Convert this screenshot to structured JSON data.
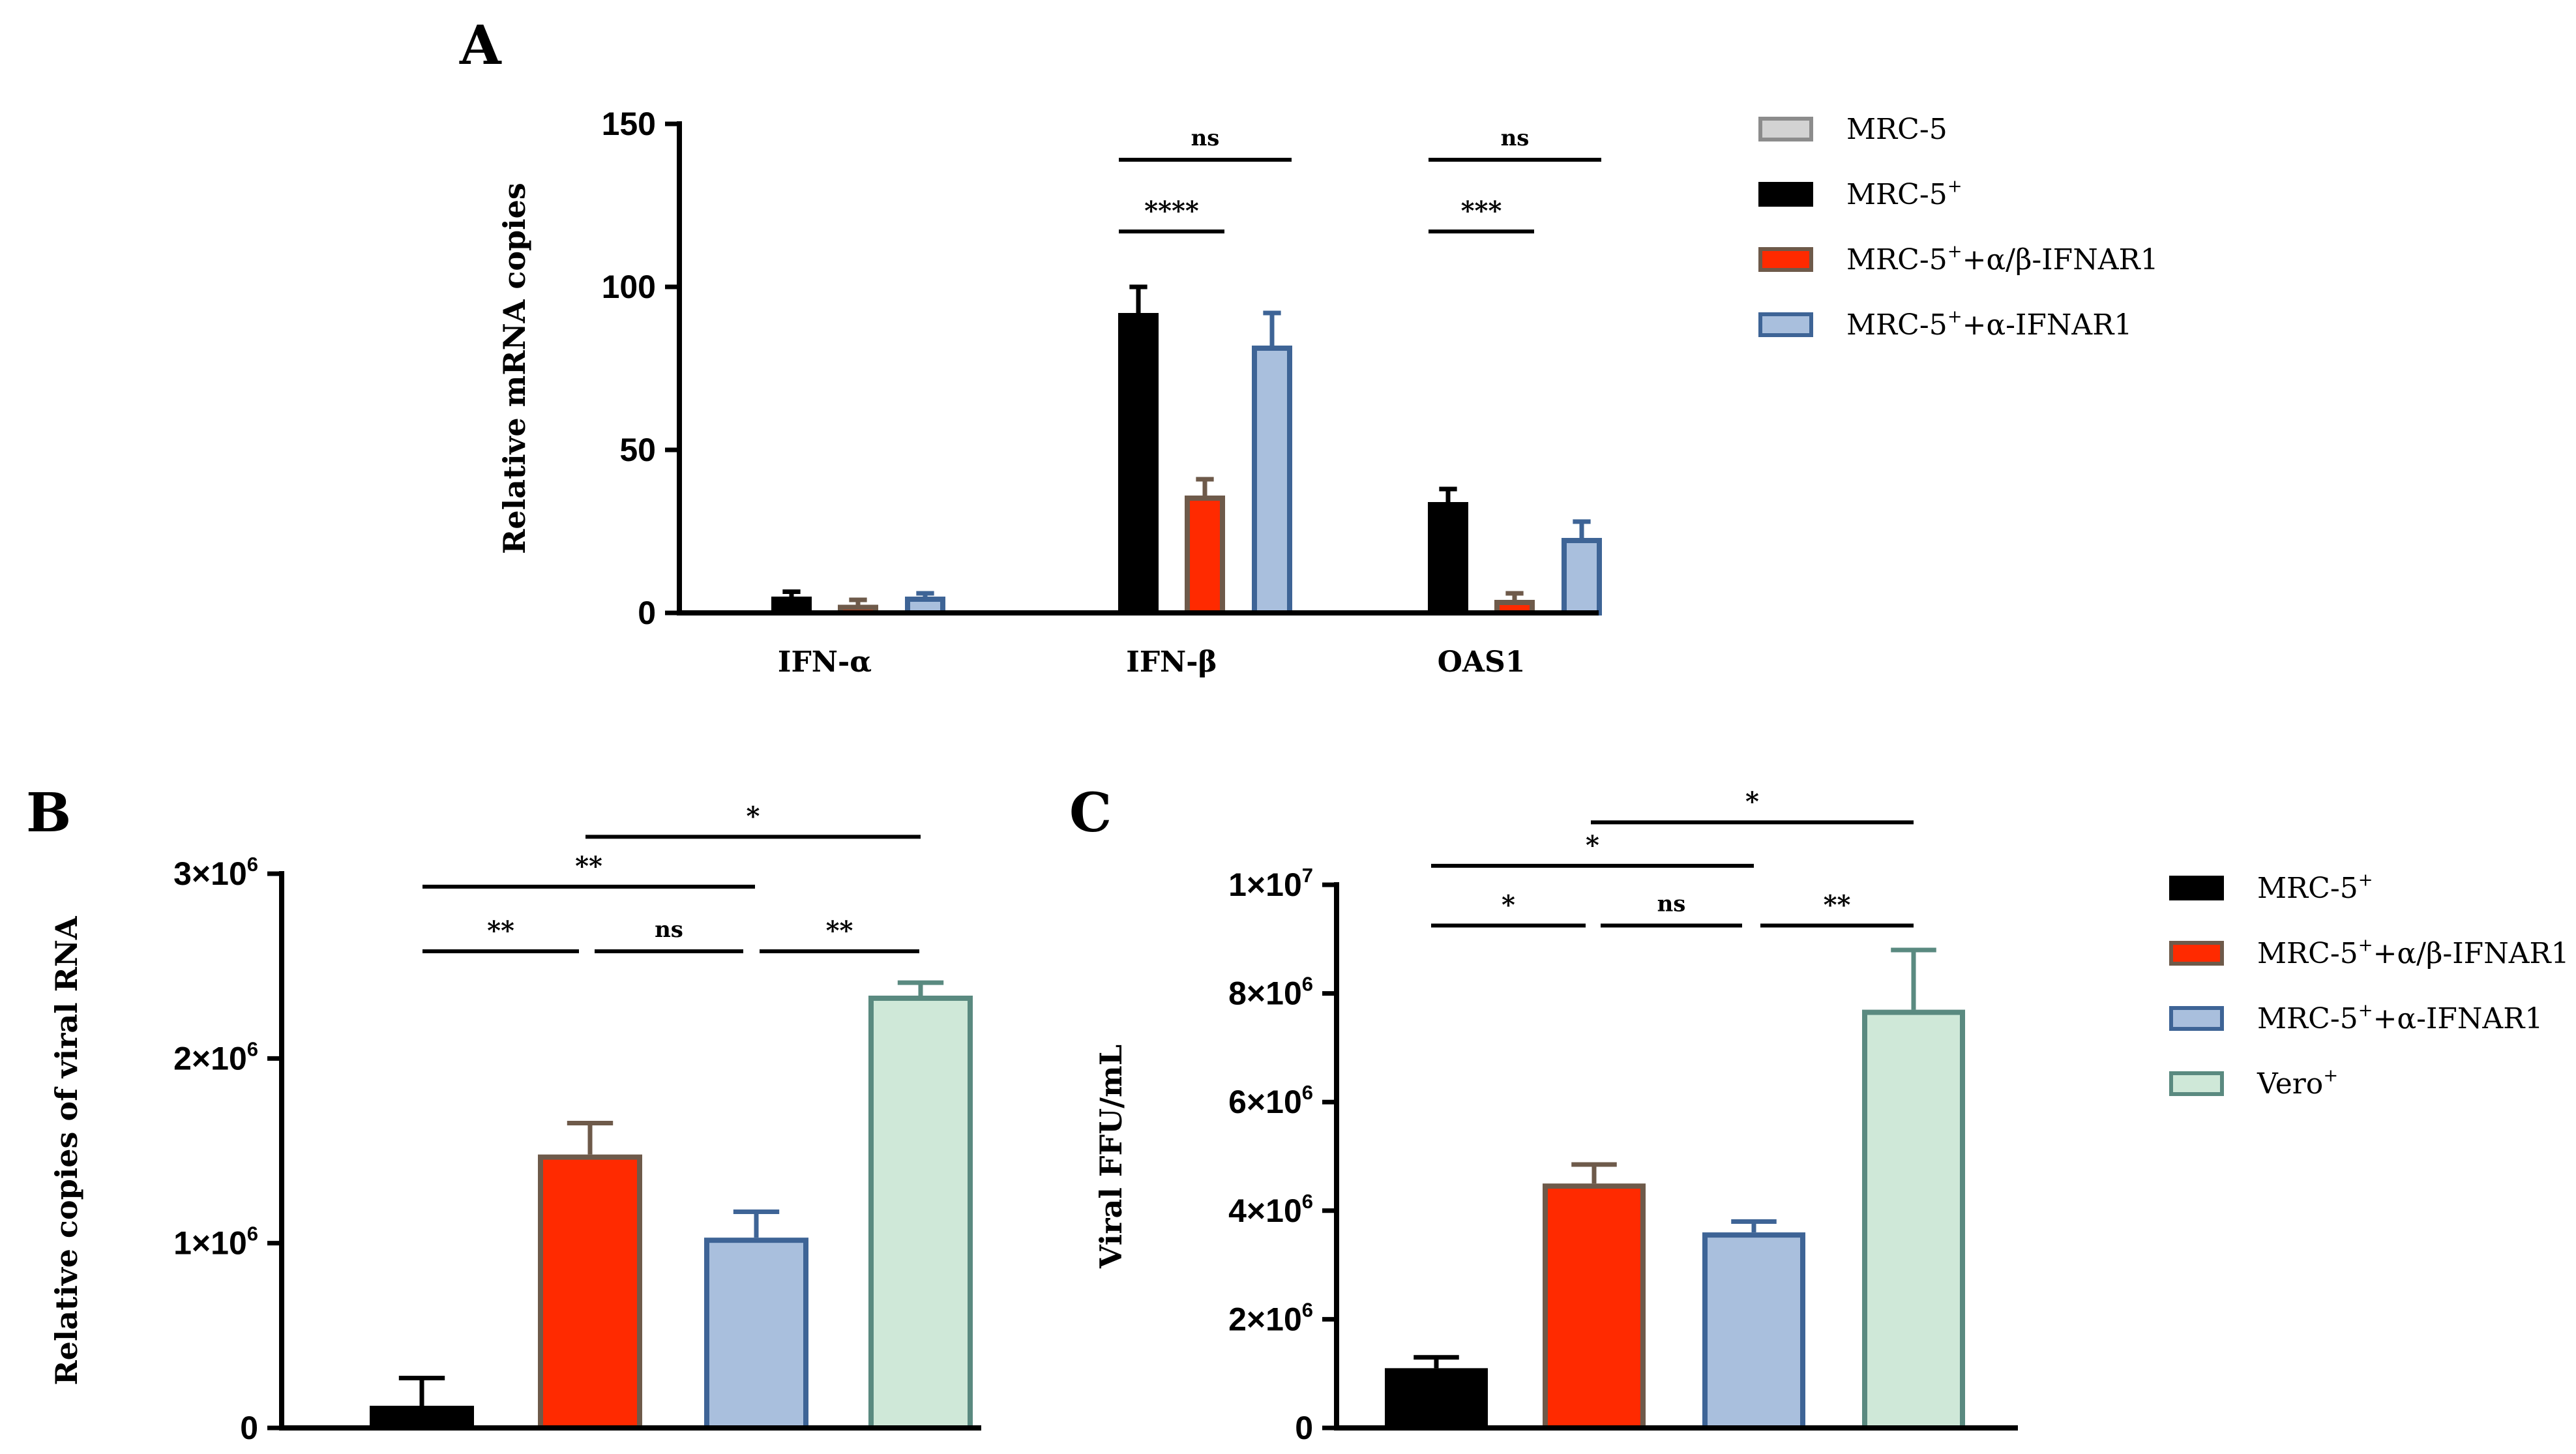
{
  "chart_data": [
    {
      "id": "A",
      "panel_label": "A",
      "type": "bar",
      "ylabel": "Relative mRNA copies",
      "ylim": [
        0,
        150
      ],
      "yticks": [
        0,
        50,
        100,
        150
      ],
      "ytick_labels": [
        "0",
        "50",
        "100",
        "150"
      ],
      "categories": [
        "IFN-α",
        "IFN-β",
        "OAS1"
      ],
      "series": [
        {
          "name": "MRC-5",
          "values": [
            0,
            0,
            0
          ],
          "errors": [
            0,
            0,
            0
          ],
          "fill": "#d3d3d3",
          "stroke": "#8c8c8c"
        },
        {
          "name": "MRC-5+",
          "values": [
            5,
            92,
            34
          ],
          "errors": [
            1.5,
            8,
            4
          ],
          "fill": "#000000",
          "stroke": "#000000"
        },
        {
          "name": "MRC-5+ +α/β-IFNAR1",
          "values": [
            2.5,
            36,
            4
          ],
          "errors": [
            1.5,
            5,
            2
          ],
          "fill": "#ff2a00",
          "stroke": "#6e5a4a"
        },
        {
          "name": "MRC-5+ +α-IFNAR1",
          "values": [
            5,
            82,
            23
          ],
          "errors": [
            1,
            10,
            5
          ],
          "fill": "#a9bfdd",
          "stroke": "#3e6496"
        }
      ],
      "legend": [
        {
          "text": "MRC-5",
          "sup": "",
          "suffix": ""
        },
        {
          "text": "MRC-5",
          "sup": "+",
          "suffix": ""
        },
        {
          "text": "MRC-5",
          "sup": "+",
          "suffix": "+α/β-IFNAR1"
        },
        {
          "text": "MRC-5",
          "sup": "+",
          "suffix": "+α-IFNAR1"
        }
      ],
      "significance": [
        {
          "label": "ns",
          "category": 1,
          "from": 1,
          "to": 3,
          "y": 139
        },
        {
          "label": "****",
          "category": 1,
          "from": 1,
          "to": 2,
          "y": 117
        },
        {
          "label": "ns",
          "category": 2,
          "from": 1,
          "to": 3,
          "y": 139
        },
        {
          "label": "***",
          "category": 2,
          "from": 1,
          "to": 2,
          "y": 117
        }
      ]
    },
    {
      "id": "B",
      "panel_label": "B",
      "type": "bar",
      "ylabel": "Relative copies of viral RNA",
      "ylim": [
        0,
        3000000
      ],
      "yticks": [
        0,
        1000000,
        2000000,
        3000000
      ],
      "ytick_labels": [
        {
          "base": "0",
          "exp": ""
        },
        {
          "base": "1×10",
          "exp": "6"
        },
        {
          "base": "2×10",
          "exp": "6"
        },
        {
          "base": "3×10",
          "exp": "6"
        }
      ],
      "categories": [
        "MRC-5+",
        "MRC-5+ +α/β-IFNAR1",
        "MRC-5+ +α-IFNAR1",
        "Vero+"
      ],
      "values": [
        120000,
        1480000,
        1030000,
        2340000
      ],
      "errors": [
        150000,
        170000,
        140000,
        70000
      ],
      "fills": [
        "#000000",
        "#ff2a00",
        "#a9bfdd",
        "#cfe8d8"
      ],
      "strokes": [
        "#000000",
        "#6e5a4a",
        "#3e6496",
        "#5a8a80"
      ],
      "significance": [
        {
          "label": "*",
          "from": 1,
          "to": 3,
          "y": 3200000
        },
        {
          "label": "**",
          "from": 0,
          "to": 2,
          "y": 2930000
        },
        {
          "label": "**",
          "from": 0,
          "to": 1,
          "y": 2580000
        },
        {
          "label": "ns",
          "from": 1,
          "to": 2,
          "y": 2580000
        },
        {
          "label": "**",
          "from": 2,
          "to": 3,
          "y": 2580000
        }
      ]
    },
    {
      "id": "C",
      "panel_label": "C",
      "type": "bar",
      "ylabel": "Viral FFU/mL",
      "ylim": [
        0,
        10000000
      ],
      "yticks": [
        0,
        2000000,
        4000000,
        6000000,
        8000000,
        10000000
      ],
      "ytick_labels": [
        {
          "base": "0",
          "exp": ""
        },
        {
          "base": "2×10",
          "exp": "6"
        },
        {
          "base": "4×10",
          "exp": "6"
        },
        {
          "base": "6×10",
          "exp": "6"
        },
        {
          "base": "8×10",
          "exp": "6"
        },
        {
          "base": "1×10",
          "exp": "7"
        }
      ],
      "categories": [
        "MRC-5+",
        "MRC-5+ +α/β-IFNAR1",
        "MRC-5+ +α-IFNAR1",
        "Vero+"
      ],
      "values": [
        1100000,
        4500000,
        3600000,
        7700000
      ],
      "errors": [
        200000,
        350000,
        200000,
        1100000
      ],
      "fills": [
        "#000000",
        "#ff2a00",
        "#a9bfdd",
        "#cfe8d8"
      ],
      "strokes": [
        "#000000",
        "#6e5a4a",
        "#3e6496",
        "#5a8a80"
      ],
      "legend": [
        {
          "text": "MRC-5",
          "sup": "+",
          "suffix": ""
        },
        {
          "text": "MRC-5",
          "sup": "+",
          "suffix": "+α/β-IFNAR1"
        },
        {
          "text": "MRC-5",
          "sup": "+",
          "suffix": "+α-IFNAR1"
        },
        {
          "text": "Vero",
          "sup": "+",
          "suffix": ""
        }
      ],
      "significance": [
        {
          "label": "*",
          "from": 1,
          "to": 3,
          "y": 11150000
        },
        {
          "label": "*",
          "from": 0,
          "to": 2,
          "y": 10350000
        },
        {
          "label": "*",
          "from": 0,
          "to": 1,
          "y": 9250000
        },
        {
          "label": "ns",
          "from": 1,
          "to": 2,
          "y": 9250000
        },
        {
          "label": "**",
          "from": 2,
          "to": 3,
          "y": 9250000
        }
      ]
    }
  ]
}
